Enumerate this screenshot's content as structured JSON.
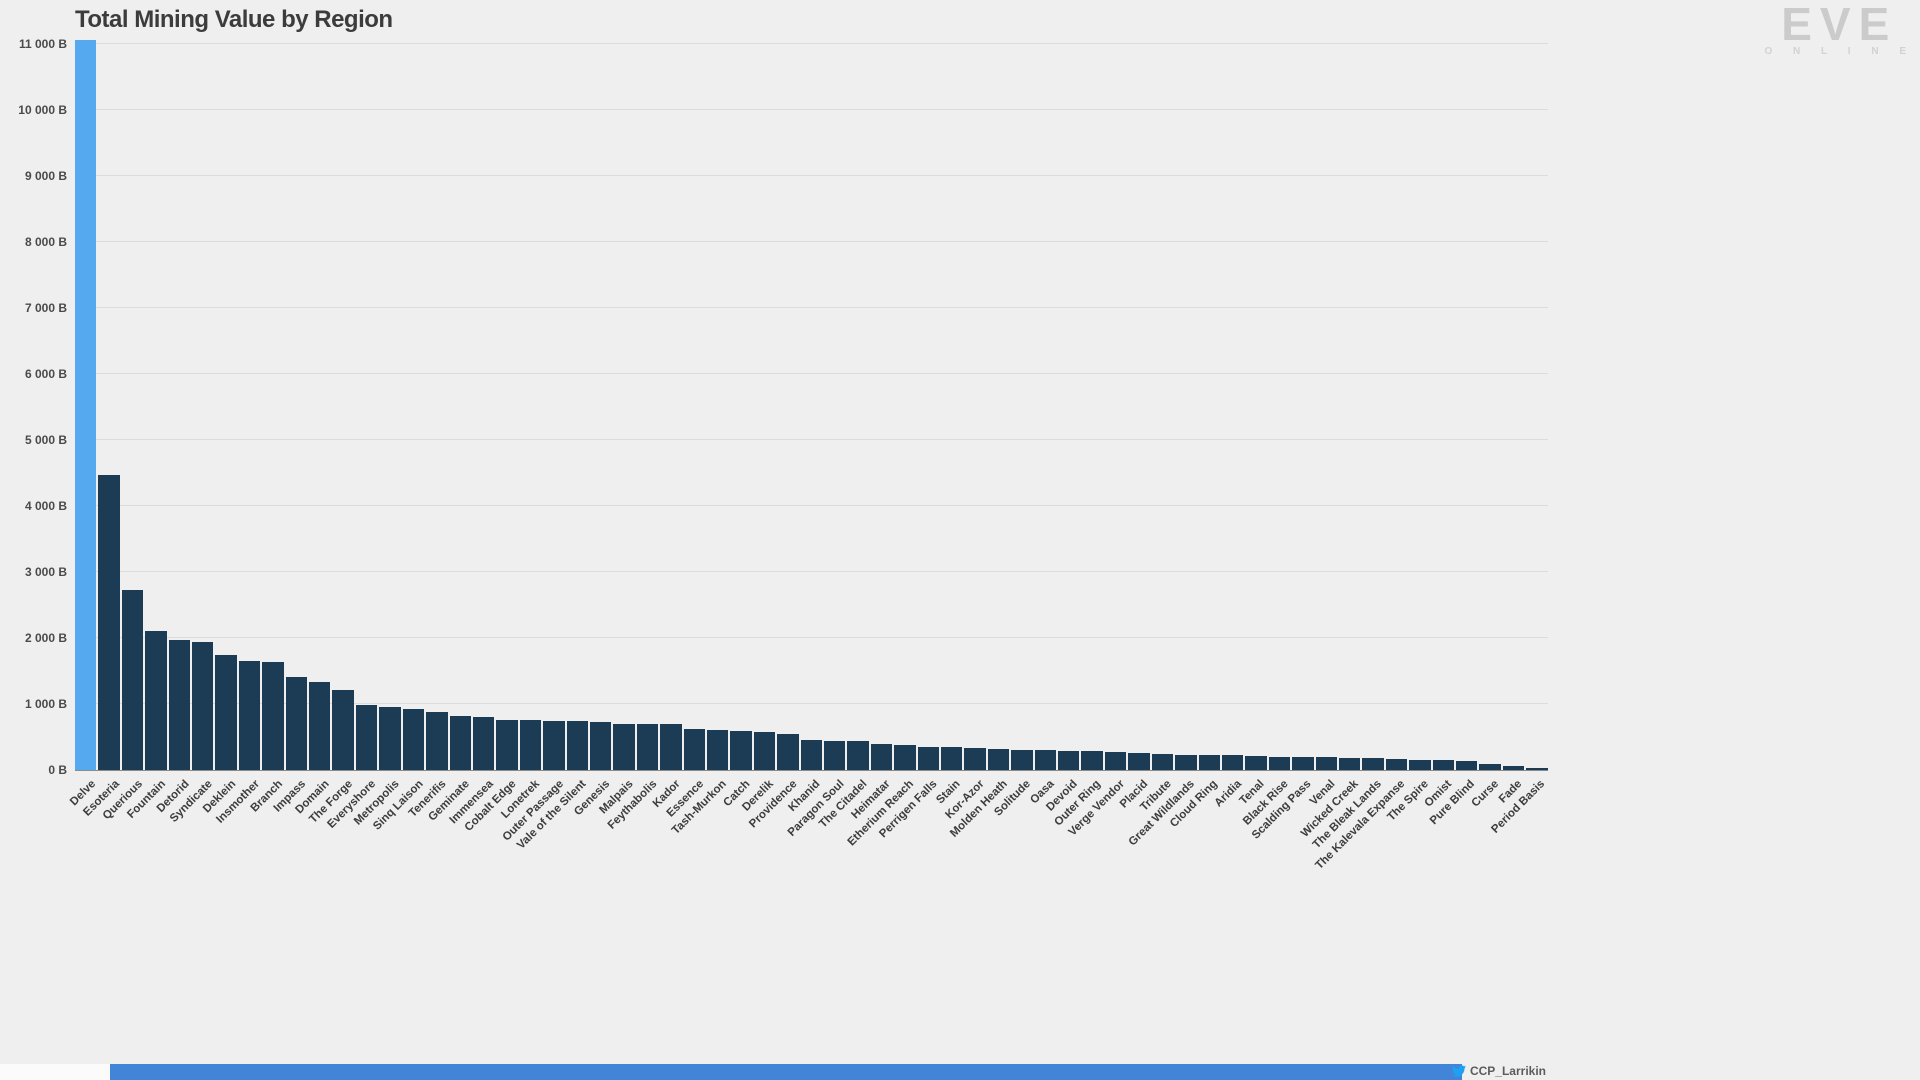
{
  "page": {
    "background": "#efefef",
    "grid_color": "#dcdcdc",
    "footer_strip_color": "#4285d8"
  },
  "logo": {
    "word": "EVE",
    "subword": "O N L I N E"
  },
  "attribution": {
    "handle": "CCP_Larrikin"
  },
  "chart_data": {
    "type": "bar",
    "title": "Total Mining Value by Region",
    "xlabel": "",
    "ylabel": "",
    "unit": "B",
    "ylim": [
      0,
      11060
    ],
    "grid": true,
    "legend": "none",
    "bar_color": "#1c3b55",
    "highlight_color": "#55a9ee",
    "highlight_index": 0,
    "yticks": [
      0,
      1000,
      2000,
      3000,
      4000,
      5000,
      6000,
      7000,
      8000,
      9000,
      10000,
      11000
    ],
    "ytick_labels": [
      "0 B",
      "1 000 B",
      "2 000 B",
      "3 000 B",
      "4 000 B",
      "5 000 B",
      "6 000 B",
      "7 000 B",
      "8 000 B",
      "9 000 B",
      "10 000 B",
      "11 000 B"
    ],
    "categories": [
      "Delve",
      "Esoteria",
      "Querious",
      "Fountain",
      "Detorid",
      "Syndicate",
      "Deklein",
      "Insmother",
      "Branch",
      "Impass",
      "Domain",
      "The Forge",
      "Everyshore",
      "Metropolis",
      "Sinq Laison",
      "Tenerifis",
      "Geminate",
      "Immensea",
      "Cobalt Edge",
      "Lonetrek",
      "Outer Passage",
      "Vale of the Silent",
      "Genesis",
      "Malpais",
      "Feythabolis",
      "Kador",
      "Essence",
      "Tash-Murkon",
      "Catch",
      "Derelik",
      "Providence",
      "Khanid",
      "Paragon Soul",
      "The Citadel",
      "Heimatar",
      "Etherium Reach",
      "Perrigen Falls",
      "Stain",
      "Kor-Azor",
      "Molden Heath",
      "Solitude",
      "Oasa",
      "Devoid",
      "Outer Ring",
      "Verge Vendor",
      "Placid",
      "Tribute",
      "Great Wildlands",
      "Cloud Ring",
      "Aridia",
      "Tenal",
      "Black Rise",
      "Scalding Pass",
      "Venal",
      "Wicked Creek",
      "The Bleak Lands",
      "The Kalevala Expanse",
      "The Spire",
      "Omist",
      "Pure Blind",
      "Curse",
      "Fade",
      "Period Basis"
    ],
    "values": [
      11060,
      4470,
      2730,
      2100,
      1970,
      1940,
      1740,
      1650,
      1640,
      1410,
      1330,
      1210,
      985,
      955,
      925,
      880,
      820,
      805,
      760,
      755,
      745,
      740,
      725,
      695,
      690,
      690,
      625,
      605,
      590,
      575,
      545,
      455,
      445,
      440,
      395,
      375,
      345,
      345,
      335,
      315,
      305,
      300,
      290,
      285,
      275,
      255,
      240,
      235,
      230,
      225,
      215,
      200,
      195,
      195,
      185,
      180,
      170,
      155,
      150,
      140,
      95,
      55,
      25
    ]
  }
}
